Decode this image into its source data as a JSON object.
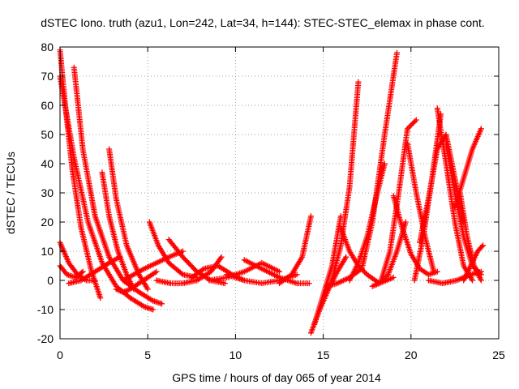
{
  "chart_data": {
    "type": "scatter",
    "title": "dSTEC Iono. truth (azu1, Lon=242, Lat=34, h=144): STEC-STEC_elemax in phase cont.",
    "xlabel": "GPS time / hours of day 065 of year 2014",
    "ylabel": "dSTEC  / TECUs",
    "xlim": [
      0,
      25
    ],
    "ylim": [
      -20,
      80
    ],
    "x_ticks": [
      "0",
      "5",
      "10",
      "15",
      "20",
      "25"
    ],
    "y_ticks": [
      "-20",
      "-10",
      "0",
      "10",
      "20",
      "30",
      "40",
      "50",
      "60",
      "70",
      "80"
    ],
    "grid": true,
    "legend": "none",
    "marker": "+",
    "color": "#ff0000",
    "arcs": [
      {
        "x": [
          0.0,
          0.3,
          0.7,
          1.2,
          1.8,
          2.3
        ],
        "y": [
          79,
          60,
          38,
          18,
          3,
          -6
        ]
      },
      {
        "x": [
          0.0,
          0.8,
          1.6,
          2.4,
          3.2,
          4.0,
          4.8,
          5.3
        ],
        "y": [
          70,
          42,
          20,
          6,
          -2,
          -6,
          -9,
          -10
        ]
      },
      {
        "x": [
          0.8,
          1.3,
          2.0,
          2.8,
          3.6,
          4.5,
          5.3,
          5.8
        ],
        "y": [
          73,
          45,
          22,
          8,
          0,
          -4,
          -7,
          -8
        ]
      },
      {
        "x": [
          0.0,
          0.5,
          1.0,
          1.5,
          2.0
        ],
        "y": [
          13,
          6,
          2,
          0,
          0
        ]
      },
      {
        "x": [
          0.0,
          0.4,
          0.9,
          1.3
        ],
        "y": [
          5,
          2,
          1,
          3
        ]
      },
      {
        "x": [
          0.5,
          1.2,
          2.0,
          2.8,
          3.4
        ],
        "y": [
          -1,
          0,
          3,
          6,
          8
        ]
      },
      {
        "x": [
          2.4,
          2.8,
          3.3,
          3.8,
          4.2
        ],
        "y": [
          37,
          22,
          10,
          2,
          -3
        ]
      },
      {
        "x": [
          2.8,
          3.2,
          3.8,
          4.5,
          5.0
        ],
        "y": [
          45,
          28,
          12,
          2,
          -3
        ]
      },
      {
        "x": [
          3.2,
          3.6,
          4.0,
          4.5,
          5.0,
          5.5
        ],
        "y": [
          -3,
          -4,
          -3,
          -1,
          1,
          3
        ]
      },
      {
        "x": [
          3.6,
          4.2,
          4.8,
          5.5,
          6.2,
          7.0
        ],
        "y": [
          0,
          2,
          4,
          6,
          8,
          10
        ]
      },
      {
        "x": [
          5.1,
          5.6,
          6.2,
          7.0,
          7.8
        ],
        "y": [
          20,
          12,
          6,
          2,
          1
        ]
      },
      {
        "x": [
          5.5,
          6.3,
          7.0,
          7.8,
          8.6,
          9.2
        ],
        "y": [
          0,
          -1,
          -1,
          0,
          3,
          8
        ]
      },
      {
        "x": [
          6.2,
          7.0,
          7.8,
          8.6,
          9.4
        ],
        "y": [
          14,
          8,
          3,
          0,
          -1
        ]
      },
      {
        "x": [
          7.5,
          8.2,
          9.0,
          9.8,
          10.5
        ],
        "y": [
          1,
          4,
          5,
          2,
          0
        ]
      },
      {
        "x": [
          8.5,
          9.5,
          10.5,
          11.5,
          12.5
        ],
        "y": [
          0,
          1,
          3,
          6,
          3
        ]
      },
      {
        "x": [
          9.5,
          10.5,
          11.5,
          12.5,
          13.5
        ],
        "y": [
          2,
          0,
          -1,
          0,
          2
        ]
      },
      {
        "x": [
          10.5,
          11.5,
          12.5,
          13.5,
          14.2
        ],
        "y": [
          7,
          4,
          1,
          -1,
          -1
        ]
      },
      {
        "x": [
          12.5,
          13.2,
          13.8,
          14.3
        ],
        "y": [
          -1,
          2,
          8,
          22
        ]
      },
      {
        "x": [
          14.3,
          14.8,
          15.3,
          15.8,
          16.3
        ],
        "y": [
          -18,
          -10,
          -3,
          3,
          8
        ]
      },
      {
        "x": [
          14.5,
          15.0,
          15.5,
          16.0
        ],
        "y": [
          -15,
          -5,
          5,
          22
        ]
      },
      {
        "x": [
          15.5,
          16.0,
          16.5,
          17.0
        ],
        "y": [
          0,
          12,
          32,
          68
        ]
      },
      {
        "x": [
          15.2,
          15.8,
          16.5,
          17.2,
          17.8,
          18.5,
          19.2
        ],
        "y": [
          -2,
          -1,
          1,
          4,
          20,
          50,
          78
        ]
      },
      {
        "x": [
          16.5,
          17.0,
          17.5,
          18.0,
          18.5
        ],
        "y": [
          0,
          6,
          15,
          28,
          40
        ]
      },
      {
        "x": [
          16.0,
          16.5,
          17.0,
          17.5,
          18.2,
          19.0
        ],
        "y": [
          18,
          10,
          5,
          2,
          -1,
          1
        ]
      },
      {
        "x": [
          17.8,
          18.2,
          18.7,
          19.2,
          19.7
        ],
        "y": [
          -2,
          -1,
          2,
          10,
          20
        ]
      },
      {
        "x": [
          18.3,
          18.8,
          19.3,
          19.8,
          20.3
        ],
        "y": [
          0,
          10,
          30,
          52,
          55
        ]
      },
      {
        "x": [
          19.0,
          19.5,
          20.0,
          20.5,
          21.0,
          21.5
        ],
        "y": [
          29,
          18,
          9,
          4,
          2,
          3
        ]
      },
      {
        "x": [
          19.8,
          20.3,
          20.8,
          21.3
        ],
        "y": [
          47,
          30,
          15,
          3
        ]
      },
      {
        "x": [
          20.2,
          20.7,
          21.2,
          21.7
        ],
        "y": [
          0,
          15,
          35,
          57
        ]
      },
      {
        "x": [
          20.5,
          21.0,
          21.5,
          22.0,
          22.5,
          23.0
        ],
        "y": [
          13,
          28,
          45,
          50,
          35,
          20
        ]
      },
      {
        "x": [
          21.5,
          22.0,
          22.5,
          23.0,
          23.5
        ],
        "y": [
          59,
          40,
          20,
          5,
          0
        ]
      },
      {
        "x": [
          22.0,
          22.5,
          23.0,
          23.5,
          24.0
        ],
        "y": [
          47,
          30,
          15,
          5,
          2
        ]
      },
      {
        "x": [
          22.5,
          23.0,
          23.5,
          24.0
        ],
        "y": [
          25,
          35,
          45,
          52
        ]
      },
      {
        "x": [
          23.0,
          23.4,
          23.8,
          24.1
        ],
        "y": [
          0,
          5,
          10,
          12
        ]
      },
      {
        "x": [
          22.8,
          23.2,
          23.6,
          24.0
        ],
        "y": [
          30,
          15,
          5,
          0
        ]
      },
      {
        "x": [
          21.0,
          21.8,
          22.6,
          23.4,
          24.0
        ],
        "y": [
          0,
          -1,
          0,
          2,
          3
        ]
      }
    ]
  }
}
